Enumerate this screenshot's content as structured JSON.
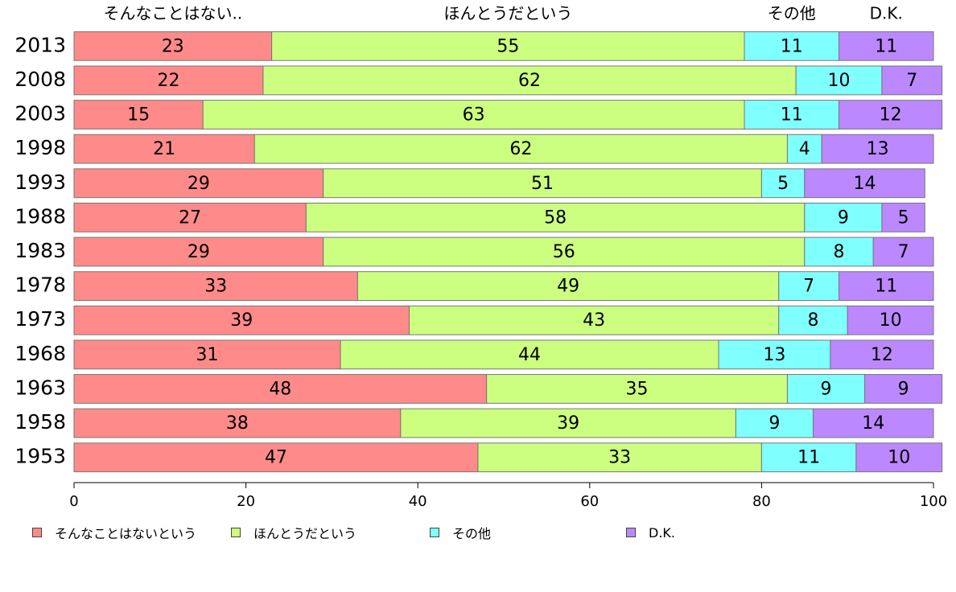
{
  "chart_data": {
    "type": "bar",
    "orientation": "horizontal",
    "stacked": true,
    "categories": [
      "2013",
      "2008",
      "2003",
      "1998",
      "1993",
      "1988",
      "1983",
      "1978",
      "1973",
      "1968",
      "1963",
      "1958",
      "1953"
    ],
    "series": [
      {
        "name": "そんなことはないという",
        "header": "そんなことはない..",
        "color": "#ff8a8a",
        "values": [
          23,
          22,
          15,
          21,
          29,
          27,
          29,
          33,
          39,
          31,
          48,
          38,
          47
        ]
      },
      {
        "name": "ほんとうだという",
        "header": "ほんとうだという",
        "color": "#ccff80",
        "values": [
          55,
          62,
          63,
          62,
          51,
          58,
          56,
          49,
          43,
          44,
          35,
          39,
          33
        ]
      },
      {
        "name": "その他",
        "header": "その他",
        "color": "#80ffff",
        "values": [
          11,
          10,
          11,
          4,
          5,
          9,
          8,
          7,
          8,
          13,
          9,
          9,
          11
        ]
      },
      {
        "name": "D.K.",
        "header": "D.K.",
        "color": "#bb88ff",
        "values": [
          11,
          7,
          12,
          13,
          14,
          5,
          7,
          11,
          10,
          12,
          9,
          14,
          10
        ]
      }
    ],
    "xlim": [
      0,
      100
    ],
    "xticks": [
      0,
      20,
      40,
      60,
      80,
      100
    ],
    "legend_position": "bottom",
    "grid": false
  }
}
